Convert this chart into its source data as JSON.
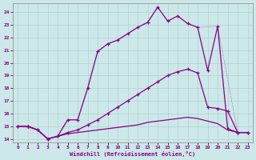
{
  "xlabel": "Windchill (Refroidissement éolien,°C)",
  "xlim": [
    -0.5,
    23.5
  ],
  "ylim": [
    13.7,
    24.7
  ],
  "xticks": [
    0,
    1,
    2,
    3,
    4,
    5,
    6,
    7,
    8,
    9,
    10,
    11,
    12,
    13,
    14,
    15,
    16,
    17,
    18,
    19,
    20,
    21,
    22,
    23
  ],
  "yticks": [
    14,
    15,
    16,
    17,
    18,
    19,
    20,
    21,
    22,
    23,
    24
  ],
  "bg_color": "#cce8e8",
  "line_color": "#880088",
  "curve1_x": [
    0,
    1,
    2,
    3,
    4,
    5,
    6,
    7,
    8,
    9,
    10,
    11,
    12,
    13,
    14,
    15,
    16,
    17,
    18,
    19,
    20,
    21,
    22,
    23
  ],
  "curve1_y": [
    15.0,
    15.0,
    14.7,
    14.0,
    14.2,
    15.5,
    15.5,
    18.0,
    20.9,
    21.5,
    21.8,
    22.3,
    22.8,
    23.2,
    24.4,
    23.3,
    23.7,
    23.1,
    22.8,
    19.4,
    22.9,
    14.8,
    14.5,
    14.5
  ],
  "curve2_x": [
    0,
    1,
    2,
    3,
    4,
    5,
    6,
    7,
    8,
    9,
    10,
    11,
    12,
    13,
    14,
    15,
    16,
    17,
    18,
    19,
    20,
    21,
    22,
    23
  ],
  "curve2_y": [
    15.0,
    15.0,
    14.7,
    14.0,
    14.2,
    14.5,
    14.7,
    15.1,
    15.5,
    16.0,
    16.5,
    17.0,
    17.5,
    18.0,
    18.5,
    19.0,
    19.3,
    19.5,
    19.2,
    16.5,
    16.4,
    16.2,
    14.5,
    14.5
  ],
  "curve3_x": [
    0,
    1,
    2,
    3,
    4,
    5,
    6,
    7,
    8,
    9,
    10,
    11,
    12,
    13,
    14,
    15,
    16,
    17,
    18,
    19,
    20,
    21,
    22,
    23
  ],
  "curve3_y": [
    15.0,
    15.0,
    14.7,
    14.0,
    14.2,
    14.4,
    14.5,
    14.6,
    14.7,
    14.8,
    14.9,
    15.0,
    15.1,
    15.3,
    15.4,
    15.5,
    15.6,
    15.7,
    15.6,
    15.4,
    15.2,
    14.7,
    14.5,
    14.5
  ],
  "curve4_x": [
    0,
    2,
    3,
    4,
    5,
    6,
    7,
    8,
    9,
    10,
    11,
    12,
    13,
    14,
    15,
    16,
    17,
    18,
    20,
    22,
    23
  ],
  "curve4_y": [
    15.0,
    14.7,
    14.0,
    14.2,
    15.5,
    15.5,
    18.0,
    20.9,
    21.5,
    21.8,
    22.3,
    22.8,
    23.2,
    24.4,
    23.3,
    23.7,
    23.1,
    22.8,
    22.9,
    14.5,
    14.5
  ]
}
